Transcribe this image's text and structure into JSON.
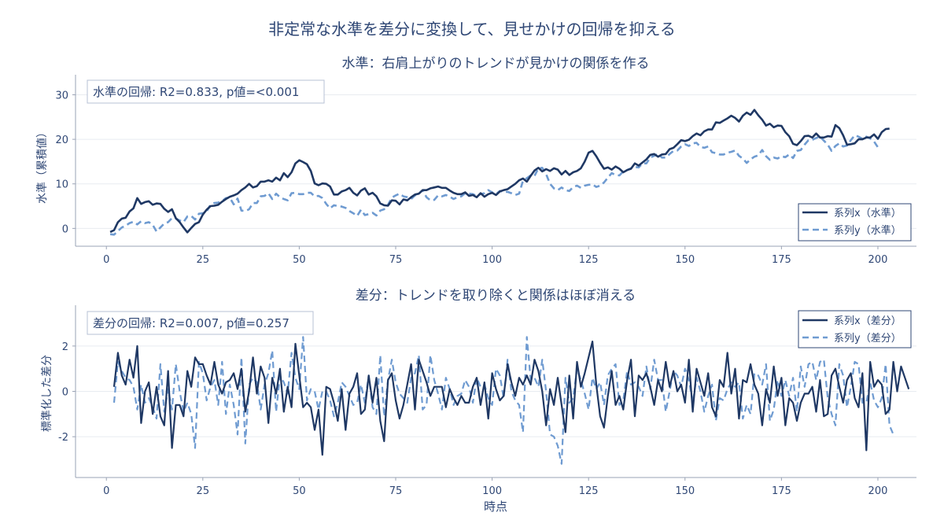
{
  "figure": {
    "suptitle": "非定常な水準を差分に変換して、見せかけの回帰を抑える",
    "xlabel": "時点"
  },
  "colors": {
    "series_x": "#1f3864",
    "series_y": "#6f9bd1",
    "text": "#2f4775",
    "grid": "#e8ebf0",
    "axis": "#9aa3b5"
  },
  "chart_data": [
    {
      "type": "line",
      "title": "水準：右肩上がりのトレンドが見かけの関係を作る",
      "xlabel": "",
      "ylabel": "水準（累積値）",
      "xlim": [
        -8,
        210
      ],
      "ylim": [
        -4,
        34.5
      ],
      "xticks": [
        0,
        25,
        50,
        75,
        100,
        125,
        150,
        175,
        200
      ],
      "yticks": [
        0,
        10,
        20,
        30
      ],
      "grid": true,
      "annotation": "水準の回帰: R2=0.833, p値=<0.001",
      "legend_position": "lower-right",
      "x_start": 1,
      "series": [
        {
          "name": "系列x（水準）",
          "style": "solid",
          "values": [
            -0.8,
            -0.4,
            1.4,
            2.2,
            2.4,
            3.8,
            4.5,
            6.8,
            5.5,
            5.9,
            6.1,
            5.3,
            5.6,
            5.5,
            4.4,
            3.7,
            4.3,
            2.3,
            1.4,
            0.2,
            -0.9,
            0.1,
            1.0,
            1.4,
            3.1,
            4.2,
            5.0,
            5.1,
            5.3,
            6.0,
            6.6,
            7.1,
            7.4,
            7.8,
            8.6,
            9.2,
            10.0,
            9.2,
            9.5,
            10.5,
            10.5,
            10.8,
            10.5,
            11.4,
            10.8,
            12.4,
            11.5,
            12.6,
            14.6,
            15.3,
            14.9,
            14.4,
            12.9,
            10.1,
            9.7,
            10.1,
            10.0,
            9.4,
            7.6,
            7.6,
            8.3,
            8.6,
            9.1,
            8.0,
            7.4,
            8.5,
            9.0,
            7.6,
            8.0,
            7.2,
            5.6,
            5.2,
            5.1,
            6.3,
            6.2,
            5.4,
            6.5,
            6.3,
            7.0,
            7.6,
            7.8,
            8.6,
            8.6,
            9.0,
            9.2,
            9.4,
            9.1,
            9.1,
            8.5,
            8.0,
            7.7,
            7.7,
            8.1,
            7.3,
            7.5,
            7.0,
            7.9,
            7.1,
            7.7,
            8.0,
            7.5,
            8.3,
            8.6,
            8.8,
            9.4,
            10.0,
            10.8,
            11.2,
            10.5,
            11.8,
            13.0,
            13.6,
            12.8,
            13.3,
            12.9,
            13.5,
            13.2,
            12.1,
            12.9,
            12.0,
            12.6,
            12.9,
            13.5,
            15.0,
            17.0,
            17.4,
            16.2,
            14.7,
            13.4,
            13.7,
            13.2,
            13.9,
            13.4,
            12.6,
            13.1,
            13.4,
            14.6,
            14.1,
            14.8,
            15.5,
            16.5,
            16.7,
            16.1,
            16.6,
            16.7,
            17.8,
            18.1,
            18.9,
            19.8,
            19.6,
            19.9,
            20.7,
            21.3,
            20.9,
            21.8,
            22.2,
            22.2,
            23.8,
            23.7,
            24.2,
            24.7,
            25.3,
            24.8,
            24.0,
            25.3,
            26.0,
            25.5,
            26.6,
            25.4,
            24.4,
            23.1,
            23.5,
            22.7,
            23.1,
            23.0,
            21.6,
            20.7,
            19.0,
            18.7,
            19.6,
            20.7,
            20.8,
            20.4,
            21.3,
            20.4,
            20.4,
            20.7,
            20.6,
            23.2,
            22.5,
            20.9,
            18.8,
            18.9,
            19.1,
            20.0,
            20.0,
            20.4,
            20.4,
            21.1,
            20.1,
            21.6,
            22.3,
            22.4
          ]
        },
        {
          "name": "系列y（水準）",
          "style": "dashed",
          "values": [
            -1.3,
            -1.4,
            -0.6,
            0.2,
            0.6,
            1.2,
            1.5,
            0.9,
            1.6,
            1.2,
            1.4,
            0.8,
            -0.7,
            0.2,
            1.1,
            1.4,
            2.3,
            2.2,
            1.8,
            1.4,
            2.7,
            2.8,
            2.0,
            3.3,
            3.4,
            3.8,
            5.3,
            5.7,
            5.8,
            6.1,
            6.8,
            6.9,
            5.4,
            6.7,
            4.0,
            3.9,
            4.3,
            5.7,
            5.7,
            7.2,
            7.3,
            7.9,
            6.6,
            7.8,
            7.0,
            6.6,
            6.3,
            7.9,
            8.0,
            7.7,
            7.7,
            8.0,
            8.0,
            7.2,
            7.3,
            6.8,
            5.5,
            4.5,
            5.2,
            5.0,
            4.9,
            4.6,
            3.9,
            3.4,
            2.8,
            4.2,
            3.0,
            3.2,
            3.5,
            2.9,
            4.0,
            4.3,
            5.3,
            6.9,
            7.4,
            7.8,
            7.2,
            7.0,
            6.6,
            7.4,
            7.8,
            8.6,
            7.0,
            6.3,
            6.4,
            7.4,
            7.2,
            7.5,
            7.1,
            6.6,
            7.0,
            7.2,
            7.9,
            7.8,
            7.7,
            7.3,
            7.7,
            7.9,
            8.6,
            8.1,
            7.7,
            8.4,
            8.2,
            8.2,
            7.9,
            7.5,
            7.8,
            10.7,
            11.3,
            11.9,
            11.8,
            13.5,
            13.6,
            12.2,
            10.0,
            9.0,
            8.6,
            9.2,
            8.6,
            8.4,
            9.3,
            9.6,
            9.1,
            9.6,
            9.8,
            9.9,
            9.3,
            9.6,
            10.3,
            11.4,
            12.4,
            12.0,
            11.9,
            12.8,
            13.1,
            13.5,
            13.8,
            13.7,
            14.6,
            14.6,
            15.9,
            16.3,
            16.8,
            15.9,
            15.9,
            16.7,
            17.4,
            17.5,
            18.4,
            18.9,
            18.5,
            19.1,
            19.2,
            18.3,
            18.1,
            18.4,
            17.1,
            16.9,
            16.6,
            16.6,
            17.0,
            17.2,
            17.5,
            16.3,
            15.7,
            14.7,
            15.5,
            16.1,
            16.4,
            17.6,
            16.2,
            15.4,
            15.9,
            15.7,
            16.2,
            16.0,
            16.6,
            15.8,
            17.4,
            17.6,
            18.8,
            19.8,
            19.9,
            20.3,
            20.6,
            19.7,
            18.8,
            17.4,
            18.5,
            19.1,
            18.4,
            18.6,
            19.8,
            20.9,
            20.6,
            20.1,
            20.6,
            20.2,
            19.5,
            18.2
          ]
        }
      ]
    },
    {
      "type": "line",
      "title": "差分：トレンドを取り除くと関係はほぼ消える",
      "xlabel": "時点",
      "ylabel": "標準化した差分",
      "xlim": [
        -8,
        210
      ],
      "ylim": [
        -3.8,
        3.8
      ],
      "xticks": [
        0,
        25,
        50,
        75,
        100,
        125,
        150,
        175,
        200
      ],
      "yticks": [
        -2,
        0,
        2
      ],
      "grid": true,
      "annotation": "差分の回帰: R2=0.007, p値=0.257",
      "legend_position": "upper-right",
      "x_start": 2,
      "series": [
        {
          "name": "系列x（差分）",
          "style": "solid",
          "values": [
            0.2,
            1.7,
            0.7,
            0.3,
            1.4,
            0.6,
            2.0,
            -1.4,
            0.0,
            0.4,
            -1.0,
            0.2,
            -1.1,
            -1.5,
            0.9,
            -2.5,
            -0.6,
            -0.6,
            -1.1,
            0.9,
            0.2,
            1.5,
            1.2,
            1.2,
            0.7,
            0.3,
            1.3,
            0.3,
            -0.1,
            0.4,
            0.5,
            0.8,
            0.1,
            1.0,
            -0.9,
            0.0,
            1.5,
            -0.1,
            1.1,
            0.6,
            -1.4,
            0.6,
            -0.1,
            1.0,
            -0.9,
            0.2,
            -0.7,
            2.1,
            0.7,
            -0.7,
            -0.5,
            -0.7,
            -1.7,
            -0.8,
            -2.8,
            0.2,
            0.1,
            -0.5,
            -1.3,
            0.1,
            -1.7,
            -0.1,
            0.2,
            0.8,
            -1.0,
            -0.8,
            0.7,
            -0.5,
            0.6,
            -1.3,
            -2.2,
            0.5,
            0.8,
            -0.4,
            -1.2,
            -0.6,
            0.3,
            1.2,
            -0.8,
            1.4,
            0.9,
            0.4,
            -0.2,
            0.2,
            0.2,
            0.2,
            -0.7,
            0.1,
            -0.3,
            -0.6,
            -0.2,
            -0.5,
            -0.5,
            0.2,
            0.6,
            -0.6,
            0.4,
            -1.2,
            0.8,
            0.1,
            -0.4,
            -0.2,
            1.2,
            0.4,
            -0.2,
            0.6,
            0.3,
            0.7,
            0.3,
            1.4,
            0.9,
            0.0,
            -1.5,
            0.1,
            -0.6,
            0.6,
            -0.6,
            -1.8,
            0.7,
            -1.2,
            1.3,
            0.2,
            0.8,
            1.5,
            2.2,
            0.3,
            -1.1,
            -1.6,
            -0.2,
            0.9,
            -0.6,
            -0.2,
            -0.8,
            0.5,
            1.4,
            -1.1,
            0.7,
            0.5,
            0.8,
            0.2,
            -0.6,
            0.5,
            0.0,
            1.3,
            0.2,
            0.9,
            0.0,
            0.3,
            -0.5,
            1.4,
            -0.9,
            1.0,
            0.4,
            -0.2,
            0.8,
            -0.7,
            -1.1,
            0.5,
            0.2,
            1.7,
            -0.1,
            1.0,
            -1.2,
            0.5,
            0.4,
            1.2,
            0.3,
            -0.1,
            -1.5,
            0.1,
            -0.5,
            1.1,
            -0.2,
            0.6,
            -1.5,
            -0.3,
            -0.5,
            -1.3,
            -0.5,
            -0.1,
            -0.1,
            0.2,
            -0.9,
            0.5,
            -1.1,
            -1.0,
            0.7,
            1.0,
            0.2,
            -0.5,
            0.5,
            0.8,
            -0.3,
            -0.7,
            0.8,
            -2.6,
            1.3,
            0.2,
            0.5,
            0.3,
            -1.0,
            -0.8,
            1.3,
            0.0,
            1.1,
            0.6,
            0.1
          ]
        },
        {
          "name": "系列y（差分）",
          "style": "dashed",
          "values": [
            -0.5,
            1.3,
            0.9,
            0.6,
            0.5,
            0.2,
            -0.8,
            0.3,
            -0.5,
            -0.3,
            -0.7,
            -1.2,
            1.2,
            -0.9,
            0.1,
            -0.8,
            1.2,
            0.0,
            -0.9,
            -0.5,
            -1.0,
            -2.5,
            1.3,
            0.8,
            -0.4,
            0.2,
            0.5,
            -0.6,
            1.3,
            -1.0,
            0.3,
            -0.6,
            -1.9,
            1.5,
            -2.3,
            0.3,
            0.6,
            0.4,
            -0.8,
            0.3,
            0.8,
            1.8,
            -0.9,
            0.7,
            0.4,
            -0.1,
            1.7,
            0.6,
            0.1,
            2.4,
            -0.4,
            0.1,
            0.0,
            -0.8,
            0.0,
            0.0,
            -0.4,
            -1.1,
            -0.5,
            0.4,
            0.2,
            -0.2,
            -0.6,
            -0.5,
            0.3,
            -0.5,
            0.7,
            -0.7,
            -1.0,
            1.6,
            -1.1,
            0.5,
            1.4,
            0.4,
            -0.1,
            -0.3,
            -0.5,
            0.6,
            0.8,
            1.6,
            -0.8,
            -0.6,
            1.6,
            0.5,
            -0.1,
            -0.8,
            0.6,
            0.1,
            -0.6,
            -0.2,
            -0.1,
            0.5,
            0.2,
            -0.5,
            0.6,
            0.2,
            0.3,
            -0.3,
            -0.6,
            1.0,
            0.7,
            -0.3,
            1.4,
            0.0,
            -0.4,
            -0.6,
            -1.8,
            2.4,
            0.5,
            0.6,
            0.2,
            1.4,
            0.0,
            -1.9,
            -2.0,
            -2.4,
            -3.2,
            0.6,
            -0.5,
            -0.3,
            1.0,
            0.5,
            -0.1,
            -0.8,
            0.6,
            0.1,
            0.4,
            -0.6,
            0.7,
            1.0,
            1.2,
            -0.6,
            -0.4,
            0.9,
            0.3,
            0.4,
            0.2,
            -0.2,
            1.1,
            0.1,
            1.4,
            0.5,
            0.5,
            -0.9,
            0.0,
            0.9,
            0.7,
            0.2,
            1.0,
            0.5,
            -0.5,
            0.6,
            0.0,
            -0.9,
            -0.2,
            0.3,
            -1.3,
            -0.3,
            -0.4,
            0.1,
            0.4,
            0.2,
            0.4,
            -1.2,
            -0.6,
            -1.0,
            0.8,
            0.7,
            0.3,
            1.2,
            -1.3,
            -0.8,
            0.5,
            -0.2,
            0.5,
            -0.2,
            0.6,
            -0.9,
            1.1,
            0.2,
            1.2,
            1.3,
            0.5,
            1.3,
            1.4,
            -0.3,
            -1.0,
            -1.5,
            1.2,
            0.7,
            -0.7,
            0.2,
            1.3,
            1.2,
            -0.5,
            -0.5,
            0.4,
            -0.4,
            -0.7,
            -0.3,
            1.2,
            -1.5,
            -1.9
          ]
        }
      ]
    }
  ]
}
